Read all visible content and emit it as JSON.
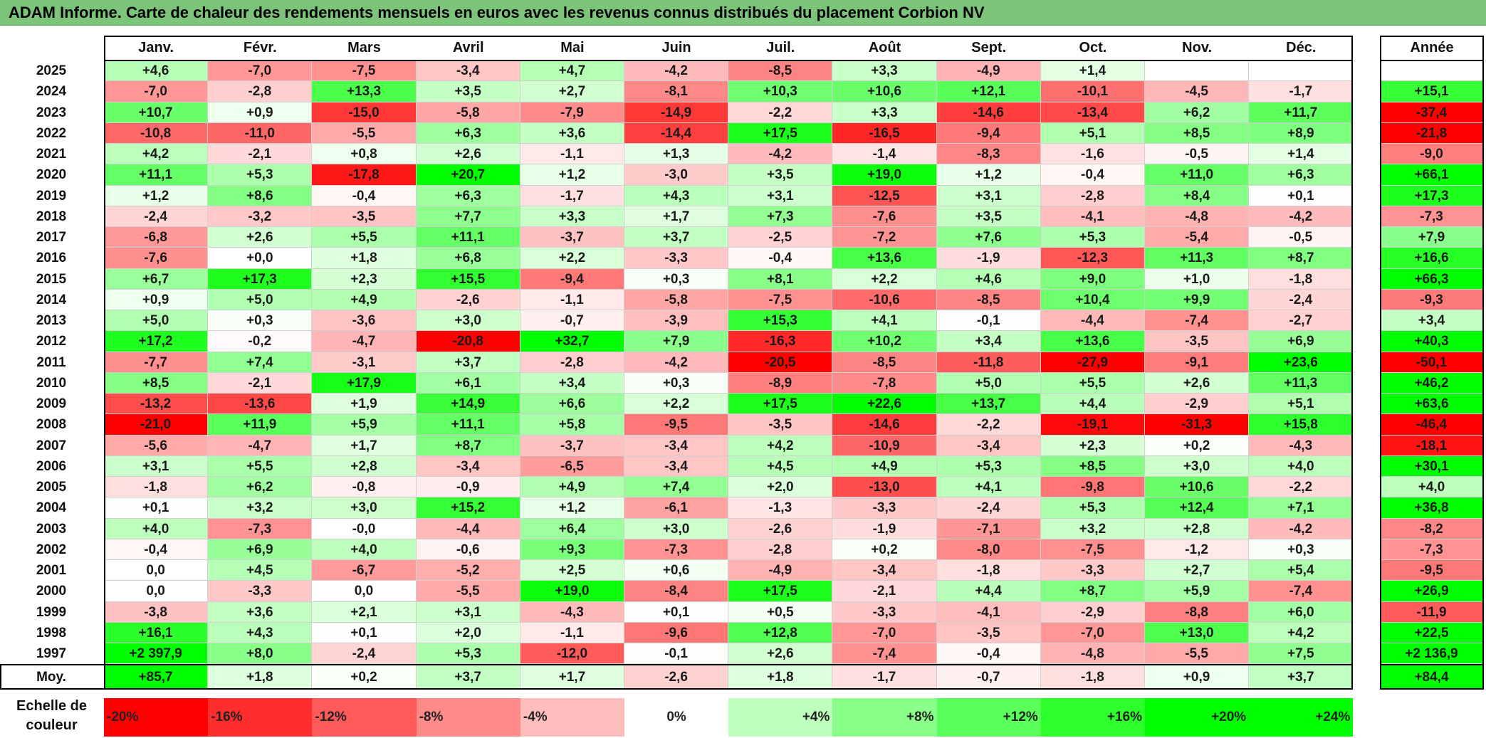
{
  "title": "ADAM Informe. Carte de chaleur des rendements mensuels en euros avec les revenus connus distribués du placement Corbion NV",
  "chart_data": {
    "type": "heatmap",
    "title": "ADAM Informe. Carte de chaleur des rendements mensuels en euros avec les revenus connus distribués du placement Corbion NV",
    "columns": [
      "Janv.",
      "Févr.",
      "Mars",
      "Avril",
      "Mai",
      "Juin",
      "Juil.",
      "Août",
      "Sept.",
      "Oct.",
      "Nov.",
      "Déc."
    ],
    "year_column_label": "Année",
    "average_row_label": "Moy.",
    "rows": [
      {
        "year": "2025",
        "months": [
          "+4,6",
          "-7,0",
          "-7,5",
          "-3,4",
          "+4,7",
          "-4,2",
          "-8,5",
          "+3,3",
          "-4,9",
          "+1,4",
          "",
          ""
        ],
        "annual": ""
      },
      {
        "year": "2024",
        "months": [
          "-7,0",
          "-2,8",
          "+13,3",
          "+3,5",
          "+2,7",
          "-8,1",
          "+10,3",
          "+10,6",
          "+12,1",
          "-10,1",
          "-4,5",
          "-1,7"
        ],
        "annual": "+15,1"
      },
      {
        "year": "2023",
        "months": [
          "+10,7",
          "+0,9",
          "-15,0",
          "-5,8",
          "-7,9",
          "-14,9",
          "-2,2",
          "+3,3",
          "-14,6",
          "-13,4",
          "+6,2",
          "+11,7"
        ],
        "annual": "-37,4"
      },
      {
        "year": "2022",
        "months": [
          "-10,8",
          "-11,0",
          "-5,5",
          "+6,3",
          "+3,6",
          "-14,4",
          "+17,5",
          "-16,5",
          "-9,4",
          "+5,1",
          "+8,5",
          "+8,9"
        ],
        "annual": "-21,8"
      },
      {
        "year": "2021",
        "months": [
          "+4,2",
          "-2,1",
          "+0,8",
          "+2,6",
          "-1,1",
          "+1,3",
          "-4,2",
          "-1,4",
          "-8,3",
          "-1,6",
          "-0,5",
          "+1,4"
        ],
        "annual": "-9,0"
      },
      {
        "year": "2020",
        "months": [
          "+11,1",
          "+5,3",
          "-17,8",
          "+20,7",
          "+1,2",
          "-3,0",
          "+3,5",
          "+19,0",
          "+1,2",
          "-0,4",
          "+11,0",
          "+6,3"
        ],
        "annual": "+66,1"
      },
      {
        "year": "2019",
        "months": [
          "+1,2",
          "+8,6",
          "-0,4",
          "+6,3",
          "-1,7",
          "+4,3",
          "+3,1",
          "-12,5",
          "+3,1",
          "-2,8",
          "+8,4",
          "+0,1"
        ],
        "annual": "+17,3"
      },
      {
        "year": "2018",
        "months": [
          "-2,4",
          "-3,2",
          "-3,5",
          "+7,7",
          "+3,3",
          "+1,7",
          "+7,3",
          "-7,6",
          "+3,5",
          "-4,1",
          "-4,8",
          "-4,2"
        ],
        "annual": "-7,3"
      },
      {
        "year": "2017",
        "months": [
          "-6,8",
          "+2,6",
          "+5,5",
          "+11,1",
          "-3,7",
          "+3,7",
          "-2,5",
          "-7,2",
          "+7,6",
          "+5,3",
          "-5,4",
          "-0,5"
        ],
        "annual": "+7,9"
      },
      {
        "year": "2016",
        "months": [
          "-7,6",
          "+0,0",
          "+1,8",
          "+6,8",
          "+2,2",
          "-3,3",
          "-0,4",
          "+13,6",
          "-1,9",
          "-12,3",
          "+11,3",
          "+8,7"
        ],
        "annual": "+16,6"
      },
      {
        "year": "2015",
        "months": [
          "+6,7",
          "+17,3",
          "+2,3",
          "+15,5",
          "-9,4",
          "+0,3",
          "+8,1",
          "+2,2",
          "+4,6",
          "+9,0",
          "+1,0",
          "-1,8"
        ],
        "annual": "+66,3"
      },
      {
        "year": "2014",
        "months": [
          "+0,9",
          "+5,0",
          "+4,9",
          "-2,6",
          "-1,1",
          "-5,8",
          "-7,5",
          "-10,6",
          "-8,5",
          "+10,4",
          "+9,9",
          "-2,4"
        ],
        "annual": "-9,3"
      },
      {
        "year": "2013",
        "months": [
          "+5,0",
          "+0,3",
          "-3,6",
          "+3,0",
          "-0,7",
          "-3,9",
          "+15,3",
          "+4,1",
          "-0,1",
          "-4,4",
          "-7,4",
          "-2,7"
        ],
        "annual": "+3,4"
      },
      {
        "year": "2012",
        "months": [
          "+17,2",
          "-0,2",
          "-4,7",
          "-20,8",
          "+32,7",
          "+7,9",
          "-16,3",
          "+10,2",
          "+3,4",
          "+13,6",
          "-3,5",
          "+6,9"
        ],
        "annual": "+40,3"
      },
      {
        "year": "2011",
        "months": [
          "-7,7",
          "+7,4",
          "-3,1",
          "+3,7",
          "-2,8",
          "-4,2",
          "-20,5",
          "-8,5",
          "-11,8",
          "-27,9",
          "-9,1",
          "+23,6"
        ],
        "annual": "-50,1"
      },
      {
        "year": "2010",
        "months": [
          "+8,5",
          "-2,1",
          "+17,9",
          "+6,1",
          "+3,4",
          "+0,3",
          "-8,9",
          "-7,8",
          "+5,0",
          "+5,5",
          "+2,6",
          "+11,3"
        ],
        "annual": "+46,2"
      },
      {
        "year": "2009",
        "months": [
          "-13,2",
          "-13,6",
          "+1,9",
          "+14,9",
          "+6,6",
          "+2,2",
          "+17,5",
          "+22,6",
          "+13,7",
          "+4,4",
          "-2,9",
          "+5,1"
        ],
        "annual": "+63,6"
      },
      {
        "year": "2008",
        "months": [
          "-21,0",
          "+11,9",
          "+5,9",
          "+11,1",
          "+5,8",
          "-9,5",
          "-3,5",
          "-14,6",
          "-2,2",
          "-19,1",
          "-31,3",
          "+15,8"
        ],
        "annual": "-46,4"
      },
      {
        "year": "2007",
        "months": [
          "-5,6",
          "-4,7",
          "+1,7",
          "+8,7",
          "-3,7",
          "-3,4",
          "+4,2",
          "-10,9",
          "-3,4",
          "+2,3",
          "+0,2",
          "-4,3"
        ],
        "annual": "-18,1"
      },
      {
        "year": "2006",
        "months": [
          "+3,1",
          "+5,5",
          "+2,8",
          "-3,4",
          "-6,5",
          "-3,4",
          "+4,5",
          "+4,9",
          "+5,3",
          "+8,5",
          "+3,0",
          "+4,0"
        ],
        "annual": "+30,1"
      },
      {
        "year": "2005",
        "months": [
          "-1,8",
          "+6,2",
          "-0,8",
          "-0,9",
          "+4,9",
          "+7,4",
          "+2,0",
          "-13,0",
          "+4,1",
          "-9,8",
          "+10,6",
          "-2,2"
        ],
        "annual": "+4,0"
      },
      {
        "year": "2004",
        "months": [
          "+0,1",
          "+3,2",
          "+3,0",
          "+15,2",
          "+1,2",
          "-6,1",
          "-1,3",
          "-3,3",
          "-2,4",
          "+5,3",
          "+12,4",
          "+7,1"
        ],
        "annual": "+36,8"
      },
      {
        "year": "2003",
        "months": [
          "+4,0",
          "-7,3",
          "-0,0",
          "-4,4",
          "+6,4",
          "+3,0",
          "-2,6",
          "-1,9",
          "-7,1",
          "+3,2",
          "+2,8",
          "-4,2"
        ],
        "annual": "-8,2"
      },
      {
        "year": "2002",
        "months": [
          "-0,4",
          "+6,9",
          "+4,0",
          "-0,6",
          "+9,3",
          "-7,3",
          "-2,8",
          "+0,2",
          "-8,0",
          "-7,5",
          "-1,2",
          "+0,3"
        ],
        "annual": "-7,3"
      },
      {
        "year": "2001",
        "months": [
          "0,0",
          "+4,5",
          "-6,7",
          "-5,2",
          "+2,5",
          "+0,6",
          "-4,9",
          "-3,4",
          "-1,8",
          "-3,3",
          "+2,7",
          "+5,4"
        ],
        "annual": "-9,5"
      },
      {
        "year": "2000",
        "months": [
          "0,0",
          "-3,3",
          "0,0",
          "-5,5",
          "+19,0",
          "-8,4",
          "+17,5",
          "-2,1",
          "+4,4",
          "+8,7",
          "+5,9",
          "-7,4"
        ],
        "annual": "+26,9"
      },
      {
        "year": "1999",
        "months": [
          "-3,8",
          "+3,6",
          "+2,1",
          "+3,1",
          "-4,3",
          "+0,1",
          "+0,5",
          "-3,3",
          "-4,1",
          "-2,9",
          "-8,8",
          "+6,0"
        ],
        "annual": "-11,9"
      },
      {
        "year": "1998",
        "months": [
          "+16,1",
          "+4,3",
          "+0,1",
          "+2,0",
          "-1,1",
          "-9,6",
          "+12,8",
          "-7,0",
          "-3,5",
          "-7,0",
          "+13,0",
          "+4,2"
        ],
        "annual": "+22,5"
      },
      {
        "year": "1997",
        "months": [
          "+2 397,9",
          "+8,0",
          "-2,4",
          "+5,3",
          "-12,0",
          "-0,1",
          "+2,6",
          "-7,4",
          "-0,4",
          "-4,8",
          "-5,5",
          "+7,5"
        ],
        "annual": "+2 136,9"
      }
    ],
    "averages": {
      "months": [
        "+85,7",
        "+1,8",
        "+0,2",
        "+3,7",
        "+1,7",
        "-2,6",
        "+1,8",
        "-1,7",
        "-0,7",
        "-1,8",
        "+0,9",
        "+3,7"
      ],
      "annual": "+84,4"
    },
    "color_scale": {
      "title": "Echelle de couleur",
      "labels": [
        "-20%",
        "-16%",
        "-12%",
        "-8%",
        "-4%",
        "0%",
        "+4%",
        "+8%",
        "+12%",
        "+16%",
        "+20%",
        "+24%"
      ],
      "values": [
        -20,
        -16,
        -12,
        -8,
        -4,
        0,
        4,
        8,
        12,
        16,
        20,
        24
      ],
      "negative_color": "#ff0000",
      "neutral_color": "#ffffff",
      "positive_color": "#00ff00"
    }
  }
}
